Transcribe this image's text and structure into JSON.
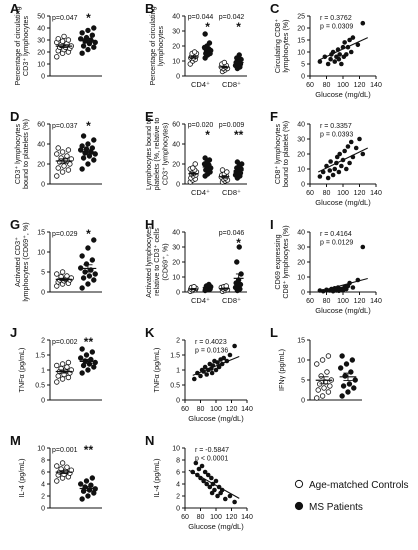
{
  "legend": {
    "controls": "Age-matched Controls",
    "ms": "MS Patients"
  },
  "colors": {
    "ink": "#111111",
    "open_fill": "#ffffff",
    "filled": "#111111"
  },
  "chart_data": [
    {
      "id": "A",
      "type": "scatter",
      "ylabel_lines": [
        "Percentage of circulating",
        "CD3⁺ lymphocytes"
      ],
      "ylim": [
        0,
        50
      ],
      "yticks": [
        0,
        10,
        20,
        30,
        40,
        50
      ],
      "groups": [
        {
          "series": "Age-matched Controls",
          "open": true,
          "values": [
            16,
            19,
            20,
            21,
            22,
            23,
            24,
            24,
            25,
            26,
            27,
            28,
            29,
            30,
            31,
            33
          ]
        },
        {
          "series": "MS Patients",
          "open": false,
          "values": [
            19,
            22,
            24,
            25,
            27,
            28,
            29,
            30,
            31,
            32,
            34,
            36,
            38,
            40
          ]
        }
      ],
      "pvalue": "p=0.047",
      "stars": "*"
    },
    {
      "id": "B",
      "type": "scatter",
      "ylabel_lines": [
        "Percentage of circulating",
        "lymphocytes"
      ],
      "ylim": [
        0,
        40
      ],
      "yticks": [
        0,
        10,
        20,
        30,
        40
      ],
      "xticklabels": [
        "CD4⁺",
        "CD8⁺"
      ],
      "groups": [
        {
          "series": "Age-matched Controls",
          "open": true,
          "cat": 0,
          "values": [
            8,
            10,
            11,
            12,
            12,
            13,
            13,
            14,
            15,
            15,
            16
          ]
        },
        {
          "series": "MS Patients",
          "open": false,
          "cat": 0,
          "values": [
            12,
            14,
            15,
            15,
            16,
            17,
            17,
            18,
            19,
            20,
            22,
            28
          ]
        },
        {
          "series": "Age-matched Controls",
          "open": true,
          "cat": 1,
          "values": [
            3,
            4,
            5,
            5,
            6,
            6,
            7,
            7,
            8,
            9
          ]
        },
        {
          "series": "MS Patients",
          "open": false,
          "cat": 1,
          "values": [
            5,
            6,
            7,
            8,
            8,
            9,
            10,
            11,
            12,
            14
          ]
        }
      ],
      "pvalues": [
        "p=0.044",
        "p=0.042"
      ],
      "stars": [
        "*",
        "*"
      ]
    },
    {
      "id": "C",
      "type": "scatter",
      "ylabel_lines": [
        "Circulating CD8⁺",
        "lymphocytes (%)"
      ],
      "xlabel": "Glucose (mg/dL)",
      "xlim": [
        60,
        140
      ],
      "xticks": [
        60,
        80,
        100,
        120,
        140
      ],
      "ylim": [
        0,
        25
      ],
      "yticks": [
        0,
        5,
        10,
        15,
        20,
        25
      ],
      "points": [
        [
          72,
          6
        ],
        [
          78,
          8
        ],
        [
          82,
          5
        ],
        [
          85,
          7
        ],
        [
          86,
          9
        ],
        [
          88,
          10
        ],
        [
          90,
          6
        ],
        [
          92,
          8
        ],
        [
          94,
          11
        ],
        [
          95,
          7
        ],
        [
          96,
          9
        ],
        [
          98,
          5
        ],
        [
          100,
          12
        ],
        [
          101,
          8
        ],
        [
          102,
          14
        ],
        [
          104,
          9
        ],
        [
          106,
          12
        ],
        [
          108,
          15
        ],
        [
          110,
          10
        ],
        [
          112,
          16
        ],
        [
          118,
          13
        ],
        [
          124,
          22
        ]
      ],
      "fit": [
        [
          70,
          6.5
        ],
        [
          130,
          16
        ]
      ],
      "stats": [
        "r = 0.3762",
        "p = 0.0309"
      ]
    },
    {
      "id": "D",
      "type": "scatter",
      "ylabel_lines": [
        "CD3⁺ lymphocytes",
        "bound to platelets (%)"
      ],
      "ylim": [
        0,
        60
      ],
      "yticks": [
        0,
        20,
        40,
        60
      ],
      "groups": [
        {
          "series": "Age-matched Controls",
          "open": true,
          "values": [
            8,
            12,
            14,
            16,
            18,
            20,
            22,
            24,
            25,
            26,
            28,
            30,
            32,
            34,
            36
          ]
        },
        {
          "series": "MS Patients",
          "open": false,
          "values": [
            15,
            20,
            24,
            26,
            28,
            30,
            31,
            32,
            34,
            35,
            36,
            38,
            40,
            44,
            48
          ]
        }
      ],
      "pvalue": "p=0.037",
      "stars": "*"
    },
    {
      "id": "E",
      "type": "scatter",
      "ylabel_lines": [
        "Lymphocytes bound to",
        "platelets (%, relative to",
        "CD3⁺ lymphocytes)"
      ],
      "ylim": [
        0,
        60
      ],
      "yticks": [
        0,
        20,
        40,
        60
      ],
      "xticklabels": [
        "CD4⁺",
        "CD8⁺"
      ],
      "groups": [
        {
          "series": "Age-matched Controls",
          "open": true,
          "cat": 0,
          "values": [
            2,
            4,
            5,
            6,
            8,
            9,
            10,
            11,
            12,
            13,
            14,
            15,
            16,
            20
          ]
        },
        {
          "series": "MS Patients",
          "open": false,
          "cat": 0,
          "values": [
            8,
            10,
            12,
            14,
            15,
            16,
            18,
            19,
            20,
            22,
            24,
            26
          ]
        },
        {
          "series": "Age-matched Controls",
          "open": true,
          "cat": 1,
          "values": [
            2,
            3,
            4,
            5,
            6,
            7,
            8,
            8,
            9,
            10,
            12,
            14
          ]
        },
        {
          "series": "MS Patients",
          "open": false,
          "cat": 1,
          "values": [
            6,
            8,
            9,
            10,
            11,
            12,
            14,
            15,
            16,
            18,
            20,
            22
          ]
        }
      ],
      "pvalues": [
        "p=0.020",
        "p=0.009"
      ],
      "stars": [
        "*",
        "**"
      ]
    },
    {
      "id": "F",
      "type": "scatter",
      "ylabel_lines": [
        "CD8⁺ lymphocytes",
        "bound to platelet (%)"
      ],
      "xlabel": "Glucose (mg/dL)",
      "xlim": [
        60,
        140
      ],
      "xticks": [
        60,
        80,
        100,
        120,
        140
      ],
      "ylim": [
        0,
        40
      ],
      "yticks": [
        0,
        10,
        20,
        30,
        40
      ],
      "points": [
        [
          72,
          5
        ],
        [
          76,
          8
        ],
        [
          80,
          12
        ],
        [
          82,
          4
        ],
        [
          84,
          9
        ],
        [
          85,
          15
        ],
        [
          88,
          6
        ],
        [
          90,
          10
        ],
        [
          92,
          14
        ],
        [
          93,
          18
        ],
        [
          95,
          8
        ],
        [
          96,
          20
        ],
        [
          98,
          12
        ],
        [
          100,
          16
        ],
        [
          102,
          22
        ],
        [
          104,
          10
        ],
        [
          106,
          25
        ],
        [
          108,
          14
        ],
        [
          110,
          28
        ],
        [
          112,
          18
        ],
        [
          116,
          24
        ],
        [
          120,
          30
        ],
        [
          124,
          20
        ]
      ],
      "fit": [
        [
          70,
          8
        ],
        [
          130,
          24
        ]
      ],
      "stats": [
        "r = 0.3357",
        "p = 0.0393"
      ]
    },
    {
      "id": "G",
      "type": "scatter",
      "ylabel_lines": [
        "Activated CD3⁺",
        "lymphocytes (CD69⁺, %)"
      ],
      "ylim": [
        0,
        15
      ],
      "yticks": [
        0,
        5,
        10,
        15
      ],
      "groups": [
        {
          "series": "Age-matched Controls",
          "open": true,
          "values": [
            1.5,
            2,
            2.2,
            2.5,
            2.8,
            3,
            3,
            3.2,
            3.5,
            3.8,
            4,
            4.5,
            5
          ]
        },
        {
          "series": "MS Patients",
          "open": false,
          "values": [
            1,
            2,
            3,
            3.5,
            4,
            4.5,
            5,
            5.5,
            6,
            7,
            8,
            9,
            11,
            13
          ]
        }
      ],
      "pvalue": "p=0.029",
      "stars": "*"
    },
    {
      "id": "H",
      "type": "scatter",
      "ylabel_lines": [
        "Activated lymphocytes",
        "relative to CD3⁺ cells",
        "(CD69⁺, %)"
      ],
      "ylim": [
        0,
        40
      ],
      "yticks": [
        0,
        10,
        20,
        30,
        40
      ],
      "xticklabels": [
        "CD4⁺",
        "CD8⁺"
      ],
      "groups": [
        {
          "series": "Age-matched Controls",
          "open": true,
          "cat": 0,
          "values": [
            0.5,
            1,
            1.5,
            2,
            2,
            2.5,
            3,
            3.5
          ]
        },
        {
          "series": "MS Patients",
          "open": false,
          "cat": 0,
          "values": [
            1,
            1.5,
            2,
            2.5,
            3,
            3.5,
            4,
            5
          ]
        },
        {
          "series": "Age-matched Controls",
          "open": true,
          "cat": 1,
          "values": [
            0.5,
            1,
            1.5,
            2,
            2.5,
            3,
            3.5,
            4
          ]
        },
        {
          "series": "MS Patients",
          "open": false,
          "cat": 1,
          "values": [
            1,
            2,
            3,
            4,
            5,
            6,
            8,
            12,
            20,
            30
          ]
        }
      ],
      "pvalues": [
        "p=0.046"
      ],
      "stars": [
        "*"
      ]
    },
    {
      "id": "I",
      "type": "scatter",
      "ylabel_lines": [
        "CD69 expressing",
        "CD8⁺ lymphocytes (%)"
      ],
      "xlabel": "Glucose (mg/dL)",
      "xlim": [
        60,
        140
      ],
      "xticks": [
        60,
        80,
        100,
        120,
        140
      ],
      "ylim": [
        0,
        40
      ],
      "yticks": [
        0,
        10,
        20,
        30,
        40
      ],
      "points": [
        [
          72,
          1
        ],
        [
          76,
          0.5
        ],
        [
          80,
          1.5
        ],
        [
          84,
          1
        ],
        [
          86,
          2
        ],
        [
          88,
          0.5
        ],
        [
          90,
          2.5
        ],
        [
          92,
          1
        ],
        [
          94,
          3
        ],
        [
          95,
          0.8
        ],
        [
          96,
          1.5
        ],
        [
          98,
          2
        ],
        [
          100,
          1.2
        ],
        [
          102,
          3.5
        ],
        [
          104,
          2
        ],
        [
          106,
          4
        ],
        [
          108,
          6
        ],
        [
          112,
          3
        ],
        [
          118,
          8
        ],
        [
          124,
          30
        ]
      ],
      "fit": [
        [
          70,
          0.2
        ],
        [
          130,
          9
        ]
      ],
      "stats": [
        "r = 0.4164",
        "p = 0.0129"
      ]
    },
    {
      "id": "J",
      "type": "scatter",
      "ylabel_lines": [
        "TNFα (pg/mL)"
      ],
      "ylim": [
        0,
        2
      ],
      "yticks": [
        0,
        0.5,
        1,
        1.5,
        2
      ],
      "groups": [
        {
          "series": "Age-matched Controls",
          "open": true,
          "values": [
            0.6,
            0.7,
            0.75,
            0.8,
            0.85,
            0.9,
            0.95,
            1.0,
            1.0,
            1.05,
            1.1,
            1.15,
            1.2,
            1.25
          ]
        },
        {
          "series": "MS Patients",
          "open": false,
          "values": [
            0.9,
            1.0,
            1.1,
            1.15,
            1.2,
            1.25,
            1.3,
            1.35,
            1.4,
            1.5,
            1.6,
            1.7
          ]
        }
      ],
      "pvalue": "p=0.002",
      "stars": "**"
    },
    {
      "id": "K",
      "type": "scatter",
      "ylabel_lines": [
        "TNFα (pg/mL)"
      ],
      "xlabel": "Glucose (mg/dL)",
      "xlim": [
        60,
        140
      ],
      "xticks": [
        60,
        80,
        100,
        120,
        140
      ],
      "ylim": [
        0,
        2
      ],
      "yticks": [
        0,
        0.5,
        1,
        1.5,
        2
      ],
      "points": [
        [
          72,
          0.7
        ],
        [
          76,
          0.9
        ],
        [
          80,
          0.8
        ],
        [
          82,
          1.0
        ],
        [
          84,
          0.95
        ],
        [
          86,
          1.1
        ],
        [
          88,
          0.85
        ],
        [
          90,
          1.0
        ],
        [
          92,
          1.2
        ],
        [
          94,
          1.05
        ],
        [
          95,
          0.9
        ],
        [
          96,
          1.15
        ],
        [
          98,
          1.3
        ],
        [
          100,
          1.0
        ],
        [
          102,
          1.25
        ],
        [
          104,
          1.1
        ],
        [
          106,
          1.35
        ],
        [
          108,
          1.2
        ],
        [
          110,
          1.4
        ],
        [
          114,
          1.3
        ],
        [
          118,
          1.5
        ],
        [
          124,
          1.8
        ]
      ],
      "fit": [
        [
          70,
          0.82
        ],
        [
          130,
          1.45
        ]
      ],
      "stats": [
        "r = 0.4023",
        "p = 0.0136"
      ]
    },
    {
      "id": "L",
      "type": "scatter",
      "ylabel_lines": [
        "IFNγ (pg/mL)"
      ],
      "ylim": [
        0,
        15
      ],
      "yticks": [
        0,
        5,
        10,
        15
      ],
      "groups": [
        {
          "series": "Age-matched Controls",
          "open": true,
          "values": [
            0.5,
            1,
            2,
            2.5,
            3,
            3.5,
            4,
            4.5,
            5,
            6,
            7,
            9,
            10,
            11
          ]
        },
        {
          "series": "MS Patients",
          "open": false,
          "values": [
            1,
            2,
            3,
            3.5,
            4,
            5,
            6,
            7,
            8,
            9,
            10,
            11
          ]
        }
      ]
    },
    {
      "id": "M",
      "type": "scatter",
      "ylabel_lines": [
        "IL-4 (pg/mL)"
      ],
      "ylim": [
        0,
        10
      ],
      "yticks": [
        0,
        2,
        4,
        6,
        8,
        10
      ],
      "groups": [
        {
          "series": "Age-matched Controls",
          "open": true,
          "values": [
            4.5,
            5,
            5.2,
            5.5,
            5.6,
            5.8,
            6,
            6.1,
            6.3,
            6.5,
            6.8,
            7,
            7.5
          ]
        },
        {
          "series": "MS Patients",
          "open": false,
          "values": [
            1.5,
            2,
            2.5,
            2.8,
            3,
            3.2,
            3.5,
            3.8,
            4,
            4.5,
            5
          ]
        }
      ],
      "pvalue": "p=0.001",
      "stars": "**"
    },
    {
      "id": "N",
      "type": "scatter",
      "ylabel_lines": [
        "IL-4 (pg/mL)"
      ],
      "xlabel": "Glucose (mg/dL)",
      "xlim": [
        60,
        140
      ],
      "xticks": [
        60,
        80,
        100,
        120,
        140
      ],
      "ylim": [
        0,
        10
      ],
      "yticks": [
        0,
        2,
        4,
        6,
        8,
        10
      ],
      "points": [
        [
          70,
          6
        ],
        [
          74,
          7.5
        ],
        [
          76,
          5.5
        ],
        [
          78,
          6.5
        ],
        [
          80,
          5
        ],
        [
          82,
          7
        ],
        [
          84,
          4.5
        ],
        [
          86,
          6
        ],
        [
          88,
          4
        ],
        [
          90,
          5.5
        ],
        [
          92,
          3.5
        ],
        [
          94,
          5
        ],
        [
          95,
          2.5
        ],
        [
          96,
          4
        ],
        [
          98,
          3
        ],
        [
          100,
          4.5
        ],
        [
          102,
          2
        ],
        [
          104,
          3.5
        ],
        [
          106,
          2.5
        ],
        [
          108,
          3
        ],
        [
          112,
          1.5
        ],
        [
          118,
          2
        ],
        [
          124,
          1
        ]
      ],
      "fit": [
        [
          65,
          6.3
        ],
        [
          130,
          1.6
        ]
      ],
      "stats": [
        "r = -0.5847",
        "p < 0.0001"
      ]
    }
  ]
}
